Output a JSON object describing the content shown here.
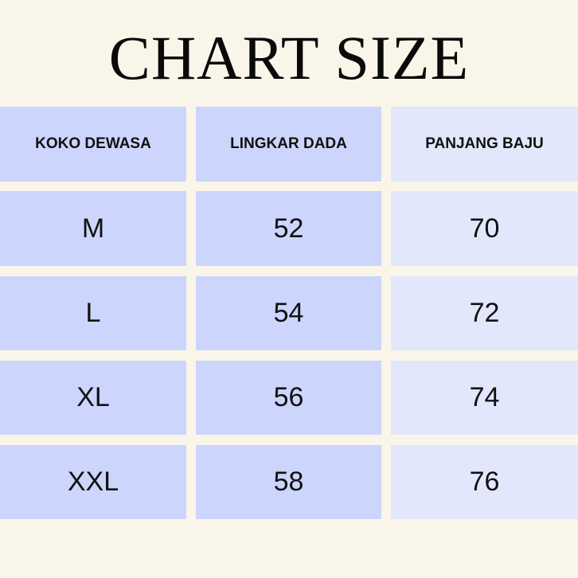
{
  "title": "CHART SIZE",
  "table": {
    "headers": [
      "KOKO DEWASA",
      "LINGKAR DADA",
      "PANJANG BAJU"
    ],
    "rows": [
      [
        "M",
        "52",
        "70"
      ],
      [
        "L",
        "54",
        "72"
      ],
      [
        "XL",
        "56",
        "74"
      ],
      [
        "XXL",
        "58",
        "76"
      ]
    ]
  },
  "colors": {
    "background": "#faf5e9",
    "header": "#9aabfd",
    "cell": "#ccd5fc",
    "cell_light": "#e3e7fb"
  }
}
